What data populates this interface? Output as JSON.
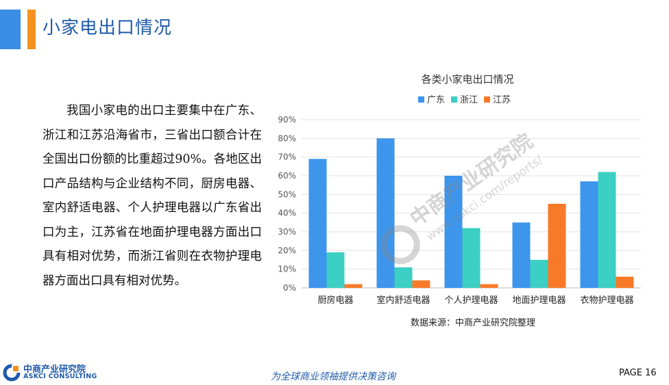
{
  "header": {
    "title": "小家电出口情况"
  },
  "body": {
    "paragraph": "我国小家电的出口主要集中在广东、浙江和江苏沿海省市，三省出口额合计在全国出口份额的比重超过90%。各地区出口产品结构与企业结构不同，厨房电器、室内舒适电器、个人护理电器以广东省出口为主，江苏省在地面护理电器方面出口具有相对优势，而浙江省则在衣物护理电器方面出口具有相对优势。"
  },
  "watermark": {
    "cn": "中商产业研究院",
    "url": "www.askci.com/reports/"
  },
  "chart_data": {
    "type": "bar",
    "title": "各类小家电出口情况",
    "categories": [
      "厨房电器",
      "室内舒适电器",
      "个人护理电器",
      "地面护理电器",
      "衣物护理电器"
    ],
    "series": [
      {
        "name": "广东",
        "color": "#3d95ec",
        "values": [
          69,
          80,
          60,
          35,
          57
        ]
      },
      {
        "name": "浙江",
        "color": "#3ccfc3",
        "values": [
          19,
          11,
          32,
          15,
          62
        ]
      },
      {
        "name": "江苏",
        "color": "#f87a28",
        "values": [
          2,
          4,
          2,
          45,
          6
        ]
      }
    ],
    "yticks": [
      "0%",
      "10%",
      "20%",
      "30%",
      "40%",
      "50%",
      "60%",
      "70%",
      "80%",
      "90%"
    ],
    "ylim": [
      0,
      90
    ],
    "grid": true,
    "legend_position": "top",
    "source": "数据来源：中商产业研究院整理"
  },
  "footer": {
    "logo_cn": "中商产业研究院",
    "logo_en": "ASKCI CONSULTING",
    "slogan": "为全球商业领袖提供决策咨询",
    "page": "PAGE  16"
  }
}
